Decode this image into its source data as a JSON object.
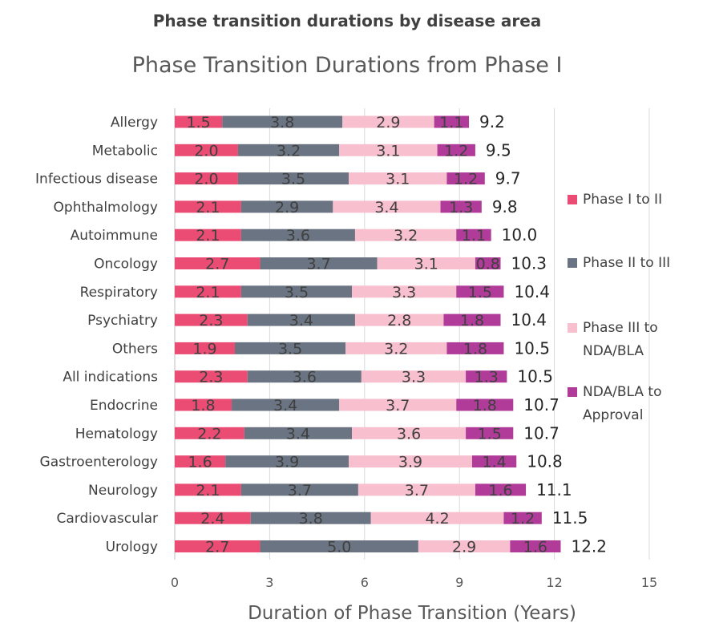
{
  "header": {
    "title": "Phase transition durations by disease area"
  },
  "chart_data": {
    "type": "bar",
    "orientation": "horizontal",
    "stacked": true,
    "title": "Phase Transition Durations from Phase I",
    "xlabel": "Duration of Phase Transition (Years)",
    "ylabel": "",
    "xlim": [
      0,
      15
    ],
    "xticks": [
      "0",
      "3",
      "6",
      "9",
      "12",
      "15"
    ],
    "grid": "vertical",
    "legend_position": "right",
    "categories": [
      "Allergy",
      "Metabolic",
      "Infectious disease",
      "Ophthalmology",
      "Autoimmune",
      "Oncology",
      "Respiratory",
      "Psychiatry",
      "Others",
      "All indications",
      "Endocrine",
      "Hematology",
      "Gastroenterology",
      "Neurology",
      "Cardiovascular",
      "Urology"
    ],
    "series": [
      {
        "name": "Phase I to II",
        "color": "#ea4c74",
        "values": [
          1.5,
          2.0,
          2.0,
          2.1,
          2.1,
          2.7,
          2.1,
          2.3,
          1.9,
          2.3,
          1.8,
          2.2,
          1.6,
          2.1,
          2.4,
          2.7
        ]
      },
      {
        "name": "Phase II to III",
        "color": "#6b7482",
        "values": [
          3.8,
          3.2,
          3.5,
          2.9,
          3.6,
          3.7,
          3.5,
          3.4,
          3.5,
          3.6,
          3.4,
          3.4,
          3.9,
          3.7,
          3.8,
          5.0
        ]
      },
      {
        "name": "Phase III to NDA/BLA",
        "color": "#f8bfcf",
        "values": [
          2.9,
          3.1,
          3.1,
          3.4,
          3.2,
          3.1,
          3.3,
          2.8,
          3.2,
          3.3,
          3.7,
          3.6,
          3.9,
          3.7,
          4.2,
          2.9
        ]
      },
      {
        "name": "NDA/BLA to Approval",
        "color": "#b13b99",
        "values": [
          1.1,
          1.2,
          1.2,
          1.3,
          1.1,
          0.8,
          1.5,
          1.8,
          1.8,
          1.3,
          1.8,
          1.5,
          1.4,
          1.6,
          1.2,
          1.6
        ]
      }
    ],
    "totals": [
      "9.2",
      "9.5",
      "9.7",
      "9.8",
      "10.0",
      "10.3",
      "10.4",
      "10.4",
      "10.5",
      "10.5",
      "10.7",
      "10.7",
      "10.8",
      "11.1",
      "11.5",
      "12.2"
    ],
    "legend": [
      {
        "lines": [
          "Phase I to II"
        ],
        "color": "#ea4c74"
      },
      {
        "lines": [
          "Phase II to III"
        ],
        "color": "#6b7482"
      },
      {
        "lines": [
          "Phase III to",
          "NDA/BLA"
        ],
        "color": "#f8bfcf"
      },
      {
        "lines": [
          "NDA/BLA to",
          "Approval"
        ],
        "color": "#b13b99"
      }
    ]
  }
}
